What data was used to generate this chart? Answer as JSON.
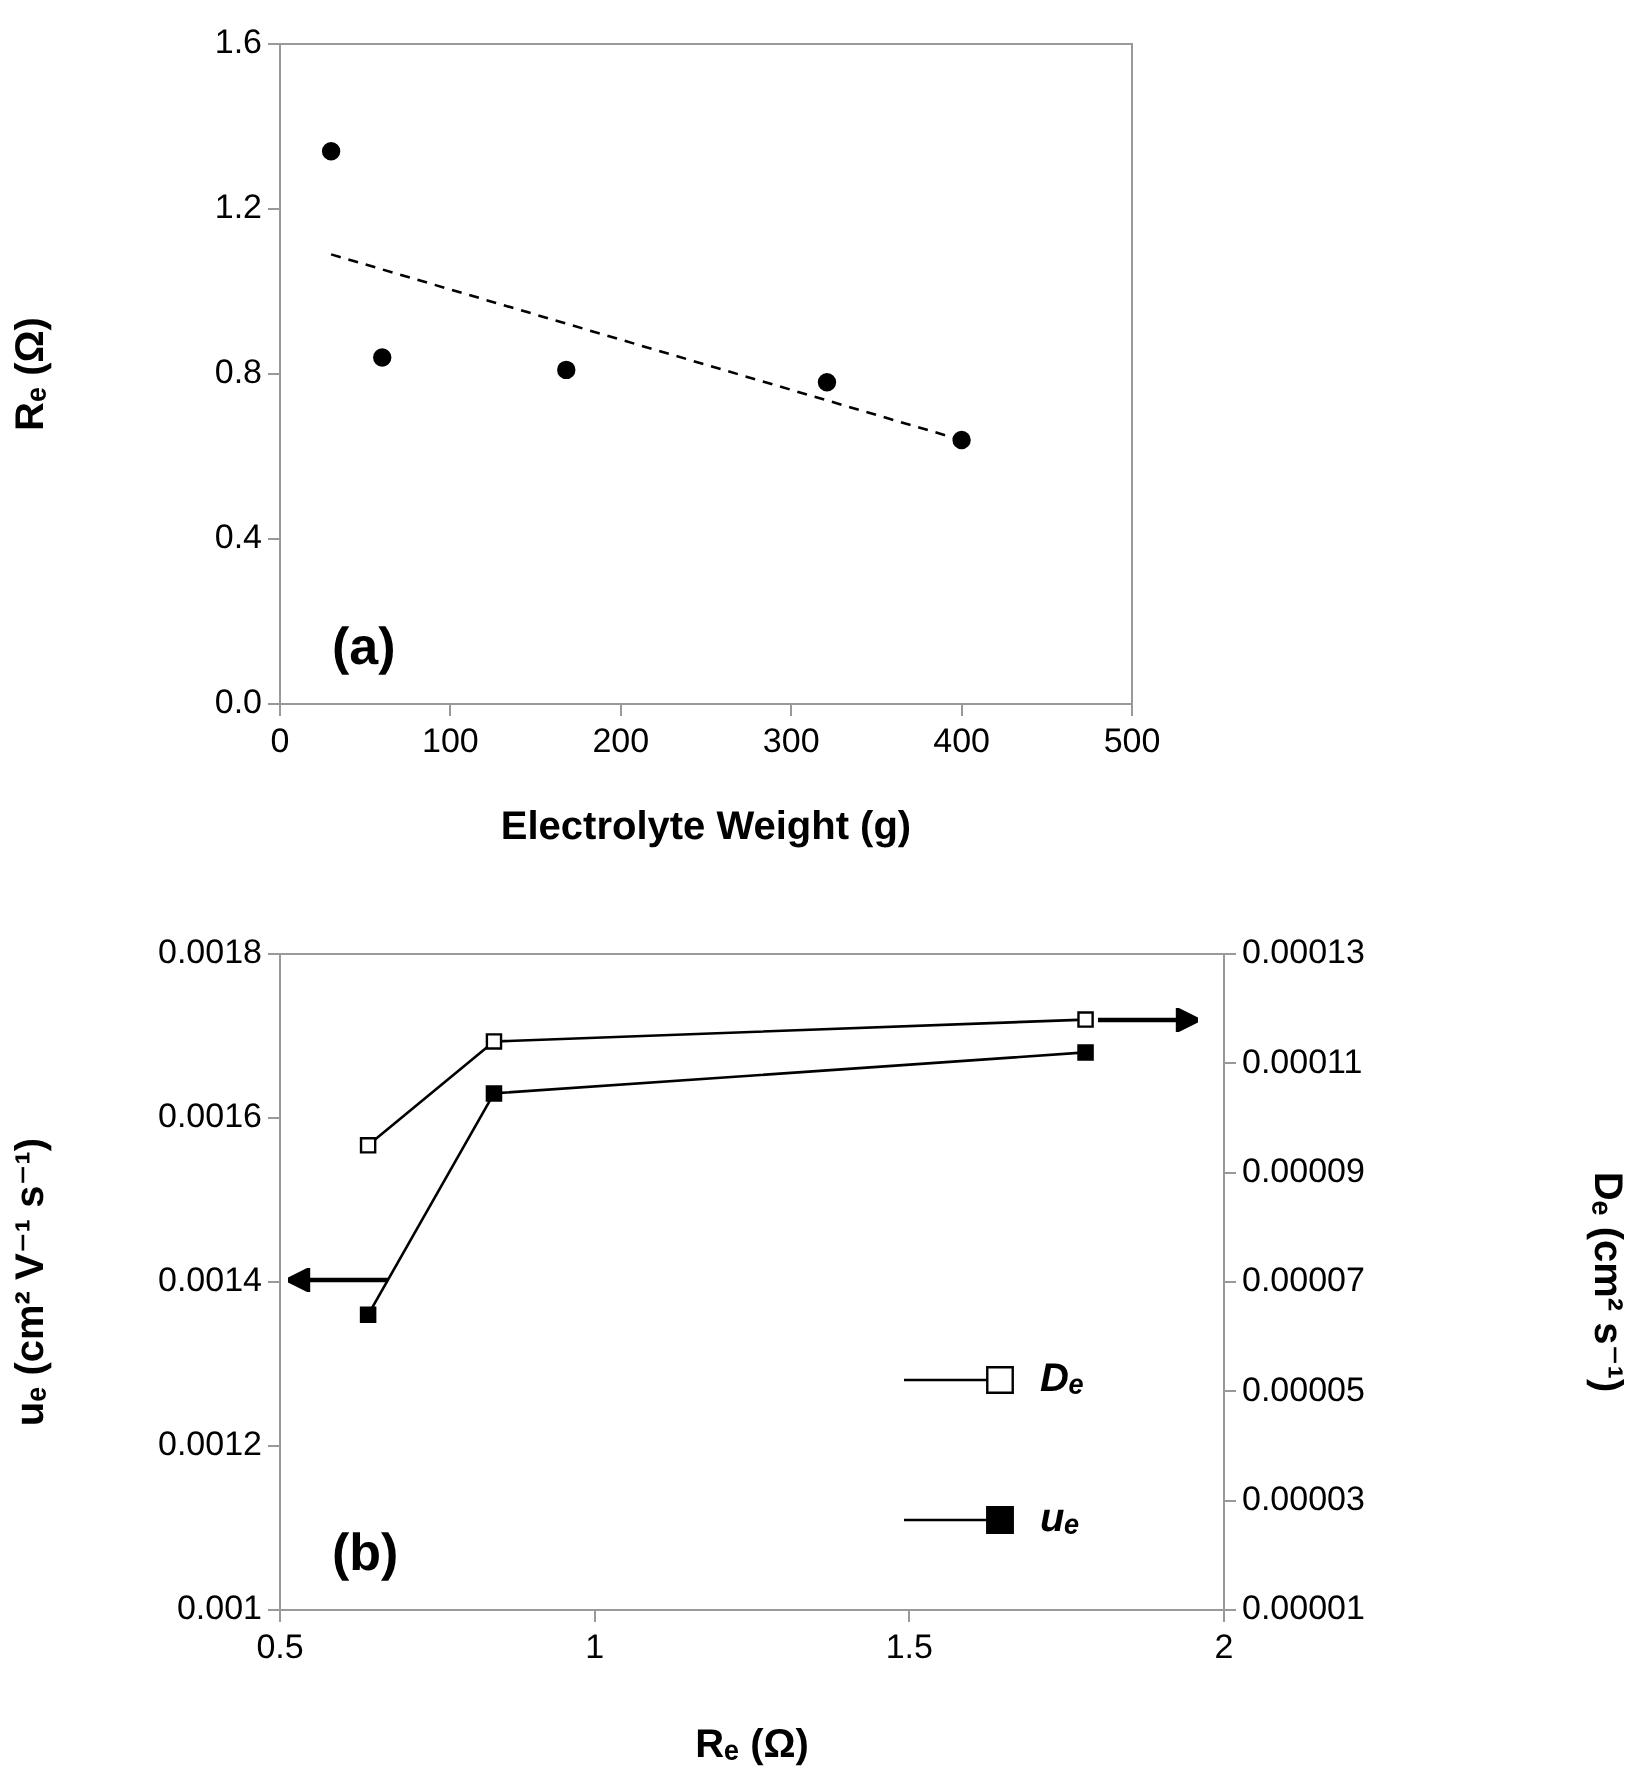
{
  "chart_data": [
    {
      "type": "scatter",
      "xlabel": "Electrolyte Weight (g)",
      "ylabel": "Rₑ (Ω)",
      "annotations": [
        "(a)"
      ],
      "xlim": [
        0,
        500
      ],
      "xticks": [
        0,
        100,
        200,
        300,
        400,
        500
      ],
      "ylim": [
        0,
        1.6
      ],
      "yticks": [
        {
          "value": 0,
          "label": "0.0"
        },
        0.4,
        0.8,
        1.2,
        1.6
      ],
      "grid": false,
      "legend": false,
      "marker": "circle",
      "series": [
        {
          "color": "#000000",
          "x": [
            30,
            60,
            168,
            321,
            400
          ],
          "values": [
            1.34,
            0.84,
            0.81,
            0.78,
            0.64
          ]
        },
        {
          "type": "line",
          "color": "#000000",
          "x": [
            30,
            400
          ],
          "values": [
            1.09,
            0.64
          ],
          "line_style": "dashed",
          "marker": "none"
        }
      ]
    },
    {
      "type": "line",
      "xlabel": "Rₑ (Ω)",
      "ylabel": "uₑ (cm² V⁻¹ s⁻¹)",
      "y2label": "Dₑ (cm² s⁻¹)",
      "annotations": [
        "(b)"
      ],
      "xlim": [
        0.5,
        2
      ],
      "xticks": [
        0.5,
        1,
        1.5,
        2
      ],
      "ylim": [
        0.001,
        0.0018
      ],
      "yticks": [
        0.001,
        0.0012,
        0.0014,
        0.0016,
        0.0018
      ],
      "y2lim": [
        1e-05,
        0.00013
      ],
      "y2ticks": [
        {
          "value": 1e-05,
          "label": "0.00001"
        },
        {
          "value": 3e-05,
          "label": "0.00003"
        },
        {
          "value": 5e-05,
          "label": "0.00005"
        },
        {
          "value": 7e-05,
          "label": "0.00007"
        },
        {
          "value": 9e-05,
          "label": "0.00009"
        },
        {
          "value": 0.00011,
          "label": "0.00011"
        },
        {
          "value": 0.00013,
          "label": "0.00013"
        }
      ],
      "grid": false,
      "legend": "bottom right",
      "marker": "square",
      "line_style": "solid",
      "series": [
        {
          "name": "Dₑ",
          "color": "#000000",
          "axis": "y2",
          "x": [
            0.64,
            0.84,
            1.78
          ],
          "values": [
            9.5e-05,
            0.000114,
            0.000118
          ]
        },
        {
          "name": "uₑ",
          "color": "#000000",
          "x": [
            0.64,
            0.84,
            1.78
          ],
          "values": [
            0.00136,
            0.00163,
            0.00168
          ]
        }
      ]
    }
  ]
}
